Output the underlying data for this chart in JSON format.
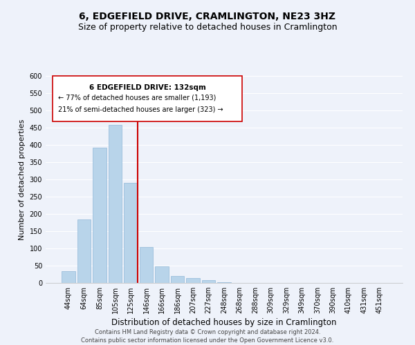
{
  "title": "6, EDGEFIELD DRIVE, CRAMLINGTON, NE23 3HZ",
  "subtitle": "Size of property relative to detached houses in Cramlington",
  "xlabel": "Distribution of detached houses by size in Cramlington",
  "ylabel": "Number of detached properties",
  "bar_labels": [
    "44sqm",
    "64sqm",
    "85sqm",
    "105sqm",
    "125sqm",
    "146sqm",
    "166sqm",
    "186sqm",
    "207sqm",
    "227sqm",
    "248sqm",
    "268sqm",
    "288sqm",
    "309sqm",
    "329sqm",
    "349sqm",
    "370sqm",
    "390sqm",
    "410sqm",
    "431sqm",
    "451sqm"
  ],
  "bar_heights": [
    35,
    184,
    393,
    459,
    290,
    105,
    48,
    20,
    15,
    8,
    2,
    1,
    1,
    0,
    0,
    0,
    1,
    0,
    0,
    0,
    1
  ],
  "bar_color": "#b8d4ea",
  "bar_edge_color": "#90b8d8",
  "vline_color": "#cc0000",
  "ylim": [
    0,
    600
  ],
  "yticks": [
    0,
    50,
    100,
    150,
    200,
    250,
    300,
    350,
    400,
    450,
    500,
    550,
    600
  ],
  "annotation_title": "6 EDGEFIELD DRIVE: 132sqm",
  "annotation_line1": "← 77% of detached houses are smaller (1,193)",
  "annotation_line2": "21% of semi-detached houses are larger (323) →",
  "annotation_box_color": "#ffffff",
  "annotation_box_edge": "#cc0000",
  "footer_line1": "Contains HM Land Registry data © Crown copyright and database right 2024.",
  "footer_line2": "Contains public sector information licensed under the Open Government Licence v3.0.",
  "background_color": "#eef2fa",
  "grid_color": "#ffffff",
  "title_fontsize": 10,
  "subtitle_fontsize": 9,
  "xlabel_fontsize": 8.5,
  "ylabel_fontsize": 8,
  "tick_fontsize": 7,
  "footer_fontsize": 6,
  "ann_fontsize_title": 7.5,
  "ann_fontsize_body": 7
}
